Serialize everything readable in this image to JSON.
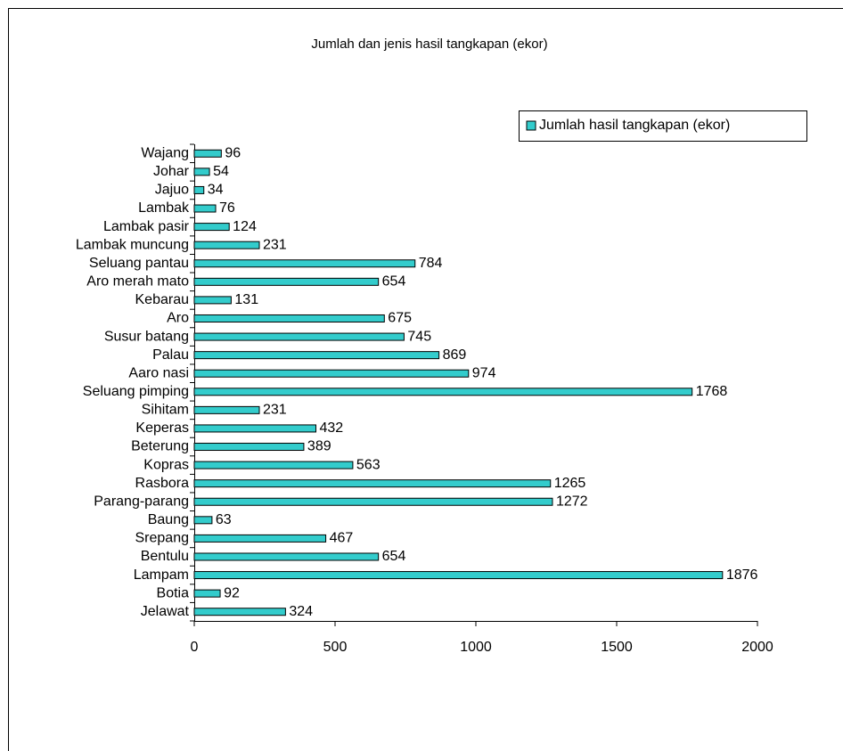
{
  "chart_data": {
    "type": "bar",
    "orientation": "horizontal",
    "title": "Jumlah dan jenis hasil tangkapan (ekor)",
    "categories": [
      "Wajang",
      "Johar",
      "Jajuo",
      "Lambak",
      "Lambak pasir",
      "Lambak muncung",
      "Seluang pantau",
      "Aro merah mato",
      "Kebarau",
      "Aro",
      "Susur batang",
      "Palau",
      "Aaro nasi",
      "Seluang pimping",
      "Sihitam",
      "Keperas",
      "Beterung",
      "Kopras",
      "Rasbora",
      "Parang-parang",
      "Baung",
      "Srepang",
      "Bentulu",
      "Lampam",
      "Botia",
      "Jelawat"
    ],
    "series": [
      {
        "name": "Jumlah hasil tangkapan (ekor)",
        "color": "#33cccc",
        "values": [
          96,
          54,
          34,
          76,
          124,
          231,
          784,
          654,
          131,
          675,
          745,
          869,
          974,
          1768,
          231,
          432,
          389,
          563,
          1265,
          1272,
          63,
          467,
          654,
          1876,
          92,
          324
        ]
      }
    ],
    "xlim": [
      0,
      2000
    ],
    "xticks": [
      0,
      500,
      1000,
      1500,
      2000
    ],
    "legend": "top-right",
    "data_labels": true
  }
}
